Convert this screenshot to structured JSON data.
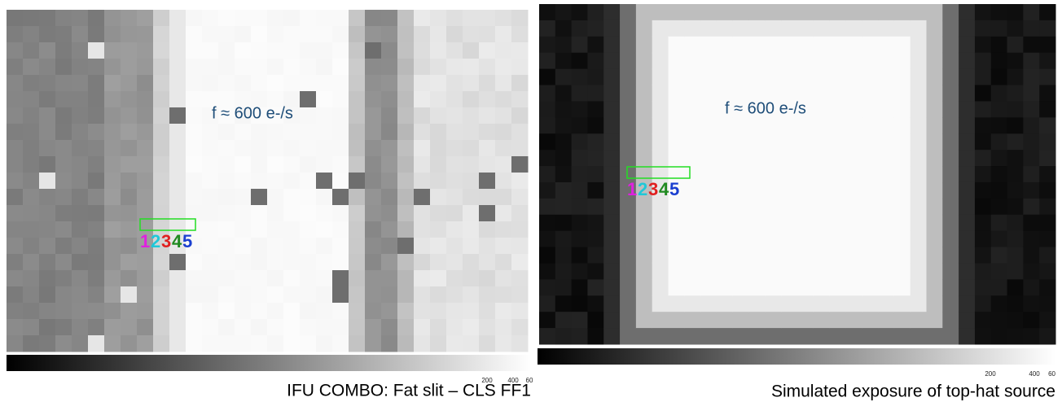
{
  "left": {
    "annotation": "f ≈ 600 e-/s",
    "labels": [
      "1",
      "2",
      "3",
      "4",
      "5"
    ],
    "colorbar_labels": [
      "200",
      "400",
      "60"
    ],
    "caption": "IFU COMBO: Fat slit – CLS FF1"
  },
  "right": {
    "annotation": "f ≈ 600 e-/s",
    "labels": [
      "1",
      "2",
      "3",
      "4",
      "5"
    ],
    "colorbar_labels": [
      "200",
      "400",
      "60"
    ],
    "caption": "Simulated exposure of top-hat source"
  }
}
